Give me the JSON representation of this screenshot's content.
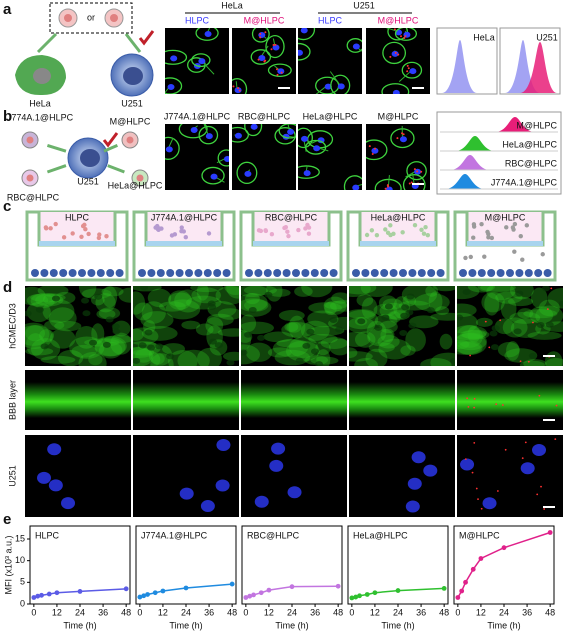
{
  "panel_labels": [
    "a",
    "b",
    "c",
    "d",
    "e"
  ],
  "panel_a": {
    "or": "or",
    "cells": [
      "HeLa",
      "U251"
    ],
    "groups": [
      "HeLa",
      "U251"
    ],
    "images": [
      "HLPC",
      "M@HLPC",
      "HLPC",
      "M@HLPC"
    ],
    "histograms": [
      "HeLa",
      "U251"
    ]
  },
  "panel_b": {
    "diagram": [
      "J774A.1@HLPC",
      "M@HLPC",
      "RBC@HLPC",
      "U251",
      "HeLa@HLPC"
    ],
    "images": [
      "J774A.1@HLPC",
      "RBC@HLPC",
      "HeLa@HLPC",
      "M@HLPC"
    ],
    "histogram_legend": [
      "M@HLPC",
      "HeLa@HLPC",
      "RBC@HLPC",
      "J774A.1@HLPC"
    ]
  },
  "panel_c": {
    "transwells": [
      "HLPC",
      "J774A.1@HLPC",
      "RBC@HLPC",
      "HeLa@HLPC",
      "M@HLPC"
    ]
  },
  "panel_d": {
    "rows": [
      "hCMEC/D3",
      "BBB layer",
      "U251"
    ]
  },
  "chart_data": [
    {
      "type": "line",
      "title": "HLPC",
      "color": "#5b5be6",
      "x": [
        0,
        2,
        4,
        8,
        12,
        24,
        48
      ],
      "values": [
        1.5,
        1.8,
        2.0,
        2.3,
        2.6,
        2.9,
        3.5
      ],
      "xlim": [
        -2,
        50
      ],
      "xticks": [
        0,
        12,
        24,
        36,
        48
      ],
      "ylim": [
        0,
        18
      ],
      "yticks": [
        0,
        5,
        10,
        15
      ],
      "xlabel": "Time (h)",
      "ylabel": "MFI (x10³ a.u.)"
    },
    {
      "type": "line",
      "title": "J774A.1@HLPC",
      "color": "#1f8be0",
      "x": [
        0,
        2,
        4,
        8,
        12,
        24,
        48
      ],
      "values": [
        1.6,
        1.9,
        2.2,
        2.6,
        3.0,
        3.7,
        4.6
      ],
      "xlim": [
        -2,
        50
      ],
      "xticks": [
        0,
        12,
        24,
        36,
        48
      ],
      "ylim": [
        0,
        18
      ],
      "xlabel": "Time (h)"
    },
    {
      "type": "line",
      "title": "RBC@HLPC",
      "color": "#c275e0",
      "x": [
        0,
        2,
        4,
        8,
        12,
        24,
        48
      ],
      "values": [
        1.5,
        1.8,
        2.1,
        2.6,
        3.2,
        4.0,
        4.1
      ],
      "xlim": [
        -2,
        50
      ],
      "xticks": [
        0,
        12,
        24,
        36,
        48
      ],
      "ylim": [
        0,
        18
      ],
      "xlabel": "Time (h)"
    },
    {
      "type": "line",
      "title": "HeLa@HLPC",
      "color": "#2fc02f",
      "x": [
        0,
        2,
        4,
        8,
        12,
        24,
        48
      ],
      "values": [
        1.4,
        1.6,
        1.9,
        2.2,
        2.6,
        3.1,
        3.6
      ],
      "xlim": [
        -2,
        50
      ],
      "xticks": [
        0,
        12,
        24,
        36,
        48
      ],
      "ylim": [
        0,
        18
      ],
      "xlabel": "Time (h)"
    },
    {
      "type": "line",
      "title": "M@HLPC",
      "color": "#e0218a",
      "x": [
        0,
        2,
        4,
        8,
        12,
        24,
        48
      ],
      "values": [
        1.5,
        3.0,
        5.0,
        8.0,
        10.5,
        13.0,
        16.5
      ],
      "xlim": [
        -2,
        50
      ],
      "xticks": [
        0,
        12,
        24,
        36,
        48
      ],
      "ylim": [
        0,
        18
      ],
      "xlabel": "Time (h)"
    }
  ]
}
